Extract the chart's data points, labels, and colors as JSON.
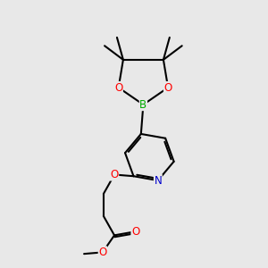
{
  "background_color": "#e8e8e8",
  "bond_color": "#000000",
  "bond_width": 1.5,
  "atom_colors": {
    "O": "#ff0000",
    "N": "#0000cc",
    "B": "#00aa00",
    "C": "#000000"
  },
  "font_size_atom": 8.5
}
